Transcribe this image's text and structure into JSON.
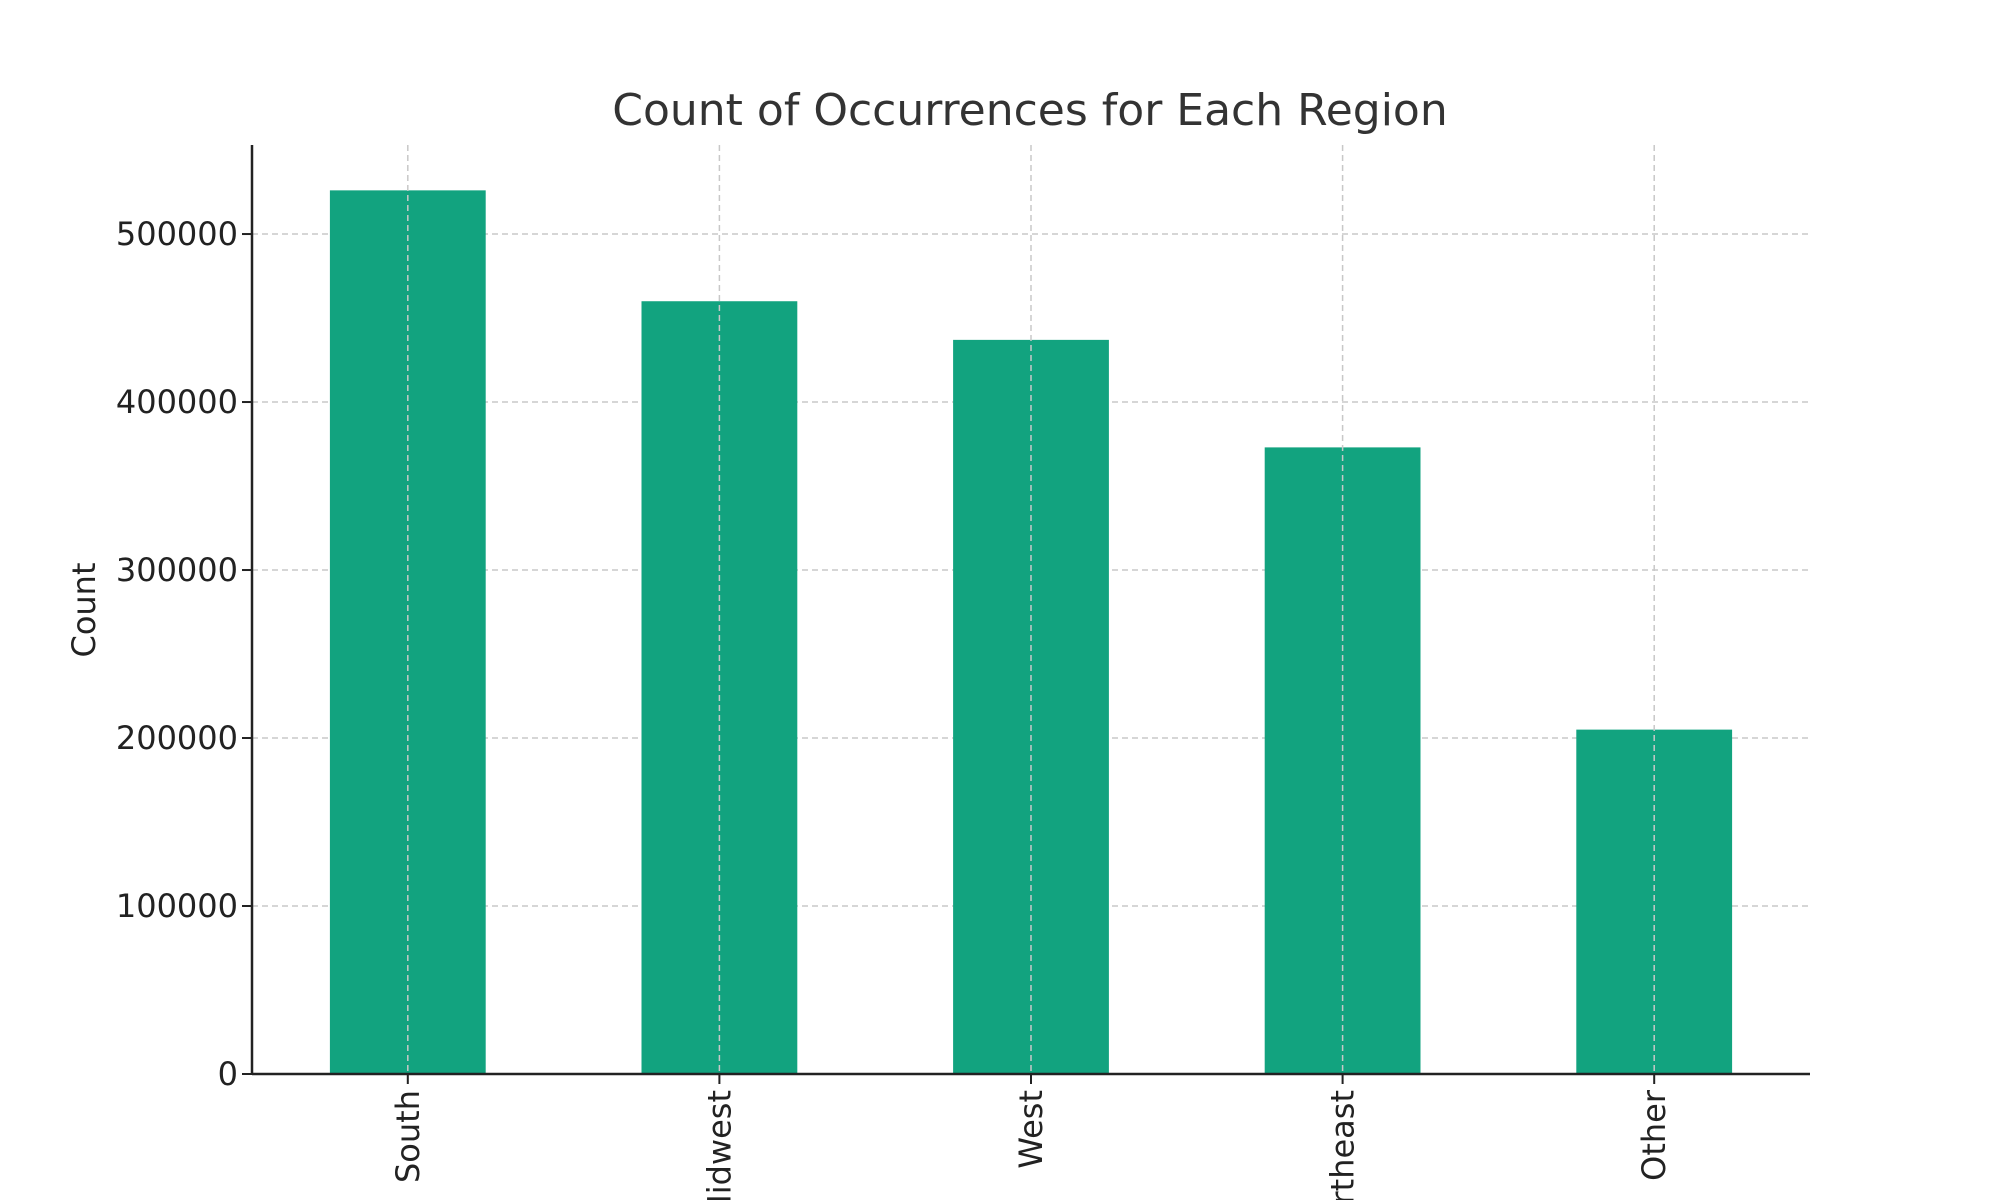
{
  "chart_data": {
    "type": "bar",
    "title": "Count of Occurrences for Each Region",
    "xlabel": "",
    "ylabel": "Count",
    "categories": [
      "South",
      "Midwest",
      "West",
      "Northeast",
      "Other"
    ],
    "values": [
      526000,
      460000,
      437000,
      373000,
      205000
    ],
    "yticks": [
      0,
      100000,
      200000,
      300000,
      400000,
      500000
    ],
    "ylim": [
      0,
      553000
    ],
    "grid": true,
    "bar_color": "#12a37f"
  }
}
